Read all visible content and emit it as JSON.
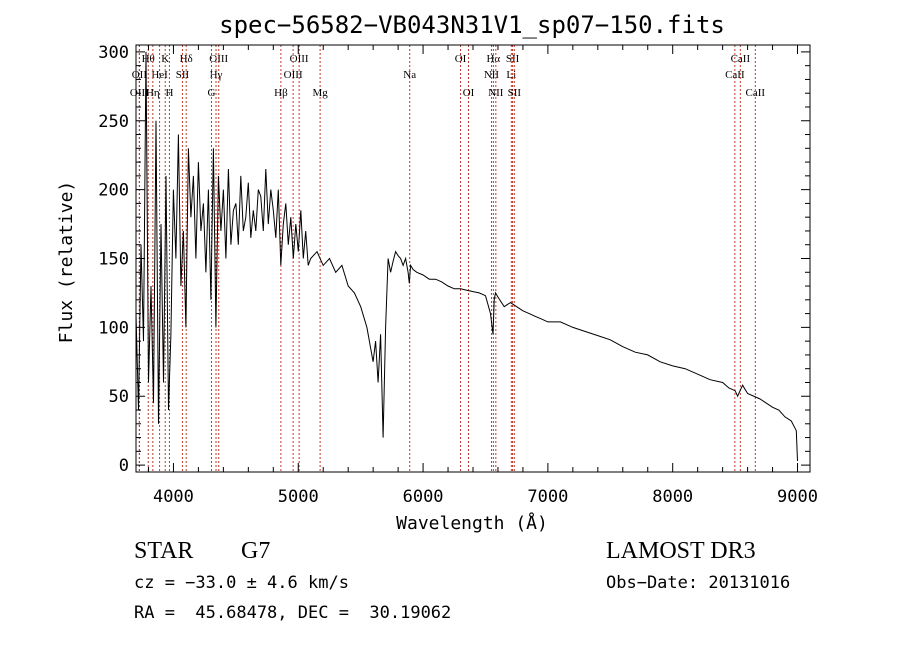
{
  "chart_data": {
    "type": "line",
    "title": "spec−56582−VB043N31V1_sp07−150.fits",
    "xlabel": "Wavelength (Å)",
    "ylabel": "Flux (relative)",
    "xlim": [
      3700,
      9100
    ],
    "ylim": [
      -5,
      305
    ],
    "xticks": [
      4000,
      5000,
      6000,
      7000,
      8000,
      9000
    ],
    "yticks": [
      0,
      50,
      100,
      150,
      200,
      250,
      300
    ],
    "grid": false,
    "series": [
      {
        "name": "flux",
        "x": [
          3700,
          3720,
          3740,
          3760,
          3780,
          3800,
          3820,
          3840,
          3860,
          3880,
          3900,
          3920,
          3940,
          3960,
          3980,
          4000,
          4020,
          4040,
          4060,
          4080,
          4100,
          4120,
          4140,
          4160,
          4180,
          4200,
          4220,
          4240,
          4260,
          4280,
          4300,
          4320,
          4340,
          4360,
          4380,
          4400,
          4420,
          4440,
          4460,
          4480,
          4500,
          4520,
          4540,
          4560,
          4580,
          4600,
          4620,
          4640,
          4660,
          4680,
          4700,
          4720,
          4740,
          4760,
          4780,
          4800,
          4820,
          4840,
          4860,
          4880,
          4900,
          4920,
          4940,
          4960,
          4980,
          5000,
          5020,
          5040,
          5060,
          5080,
          5100,
          5150,
          5200,
          5250,
          5300,
          5350,
          5400,
          5450,
          5500,
          5550,
          5600,
          5620,
          5640,
          5660,
          5680,
          5700,
          5720,
          5740,
          5760,
          5780,
          5800,
          5820,
          5840,
          5860,
          5880,
          5890,
          5900,
          5920,
          5950,
          6000,
          6050,
          6100,
          6150,
          6200,
          6250,
          6300,
          6350,
          6400,
          6450,
          6500,
          6540,
          6560,
          6570,
          6580,
          6600,
          6650,
          6700,
          6750,
          6800,
          6850,
          6900,
          6950,
          7000,
          7100,
          7200,
          7300,
          7400,
          7500,
          7600,
          7700,
          7800,
          7900,
          8000,
          8100,
          8200,
          8300,
          8400,
          8450,
          8500,
          8520,
          8540,
          8560,
          8600,
          8700,
          8800,
          8850,
          8900,
          8950,
          8990,
          9000
        ],
        "y": [
          110,
          40,
          160,
          90,
          300,
          60,
          130,
          45,
          250,
          30,
          175,
          60,
          210,
          40,
          95,
          200,
          150,
          240,
          130,
          170,
          100,
          230,
          180,
          210,
          150,
          220,
          170,
          190,
          140,
          200,
          120,
          230,
          100,
          210,
          170,
          200,
          150,
          215,
          160,
          185,
          190,
          160,
          210,
          170,
          180,
          205,
          165,
          185,
          170,
          200,
          195,
          170,
          215,
          175,
          200,
          185,
          165,
          200,
          145,
          175,
          190,
          160,
          180,
          150,
          175,
          155,
          185,
          150,
          170,
          145,
          150,
          155,
          145,
          150,
          140,
          145,
          130,
          125,
          115,
          100,
          75,
          90,
          60,
          95,
          20,
          100,
          150,
          140,
          148,
          155,
          152,
          150,
          145,
          150,
          140,
          132,
          145,
          142,
          140,
          138,
          135,
          135,
          133,
          130,
          128,
          128,
          127,
          126,
          125,
          123,
          110,
          95,
          120,
          125,
          122,
          115,
          118,
          115,
          112,
          110,
          108,
          106,
          104,
          104,
          100,
          97,
          94,
          91,
          86,
          82,
          80,
          75,
          72,
          70,
          66,
          62,
          60,
          56,
          54,
          50,
          54,
          58,
          52,
          48,
          42,
          40,
          35,
          32,
          25,
          3
        ]
      }
    ],
    "lines": [
      {
        "label": "Hθ",
        "x": 3798,
        "row": 1
      },
      {
        "label": "OII",
        "x": 3727,
        "row": 2
      },
      {
        "label": "OIII",
        "x": 3727,
        "row": 3
      },
      {
        "label": "K",
        "x": 3934,
        "row": 1
      },
      {
        "label": "HeI",
        "x": 3889,
        "row": 2
      },
      {
        "label": "Hη",
        "x": 3835,
        "row": 3
      },
      {
        "label": "H",
        "x": 3968,
        "row": 3
      },
      {
        "label": "Hδ",
        "x": 4102,
        "row": 1
      },
      {
        "label": "SII",
        "x": 4072,
        "row": 2
      },
      {
        "label": "OIII",
        "x": 4363,
        "row": 1
      },
      {
        "label": "Hγ",
        "x": 4341,
        "row": 2
      },
      {
        "label": "G",
        "x": 4305,
        "row": 3
      },
      {
        "label": "Hβ",
        "x": 4861,
        "row": 3
      },
      {
        "label": "OIII",
        "x": 5007,
        "row": 1
      },
      {
        "label": "OIII",
        "x": 4959,
        "row": 2
      },
      {
        "label": "Mg",
        "x": 5175,
        "row": 3
      },
      {
        "label": "Na",
        "x": 5893,
        "row": 2
      },
      {
        "label": "OI",
        "x": 6300,
        "row": 1
      },
      {
        "label": "OI",
        "x": 6364,
        "row": 3
      },
      {
        "label": "Hα",
        "x": 6563,
        "row": 1
      },
      {
        "label": "NII",
        "x": 6548,
        "row": 2
      },
      {
        "label": "NII",
        "x": 6583,
        "row": 3
      },
      {
        "label": "SII",
        "x": 6717,
        "row": 1
      },
      {
        "label": "Li",
        "x": 6707,
        "row": 2
      },
      {
        "label": "SII",
        "x": 6731,
        "row": 3
      },
      {
        "label": "CaII",
        "x": 8542,
        "row": 1
      },
      {
        "label": "CaII",
        "x": 8498,
        "row": 2
      },
      {
        "label": "CaII",
        "x": 8662,
        "row": 3
      }
    ]
  },
  "info": {
    "object_type": "STAR",
    "subclass": "G7",
    "survey": "LAMOST DR3",
    "cz": "cz = −33.0 ± 4.6 km/s",
    "obs_date": "Obs−Date: 20131016",
    "coords": "RA =  45.68478, DEC =  30.19062"
  }
}
